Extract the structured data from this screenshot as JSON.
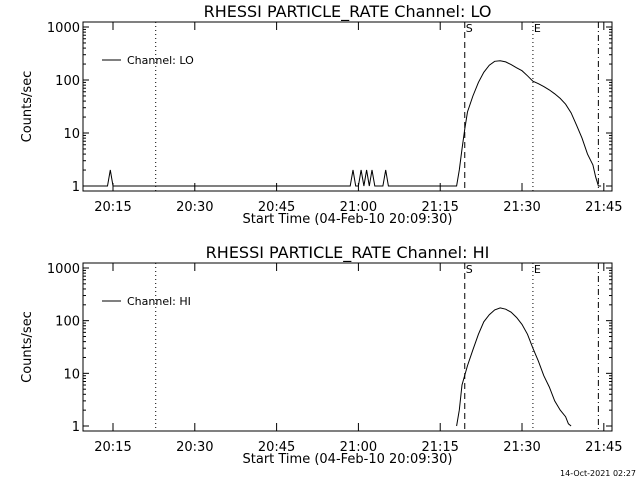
{
  "chart_data": [
    {
      "type": "line",
      "title": "RHESSI PARTICLE_RATE Channel: LO",
      "xlabel": "Start Time (04-Feb-10 20:09:30)",
      "ylabel": "Counts/sec",
      "yscale": "log",
      "ylim": [
        1,
        1000
      ],
      "xlim_minutes": [
        0,
        97
      ],
      "x_tick_labels": [
        "20:15",
        "20:30",
        "20:45",
        "21:00",
        "21:15",
        "21:30",
        "21:45"
      ],
      "y_tick_labels": [
        "1",
        "10",
        "100",
        "1000"
      ],
      "legend": {
        "label": "Channel: LO",
        "position": "upper-left"
      },
      "vertical_markers": [
        {
          "label": "",
          "time": "20:22:50",
          "style": "dotted"
        },
        {
          "label": "S",
          "time": "21:19:30",
          "style": "dashed"
        },
        {
          "label": "E",
          "time": "21:32:00",
          "style": "dotted"
        },
        {
          "label": "",
          "time": "21:44:00",
          "style": "dashdot"
        }
      ],
      "series": [
        {
          "name": "Channel: LO",
          "x": [
            "20:09:30",
            "20:13:30",
            "20:14:00",
            "20:14:30",
            "20:15:00",
            "20:15:30",
            "20:58:00",
            "20:58:30",
            "20:59:00",
            "20:59:30",
            "21:00:00",
            "21:00:30",
            "21:01:00",
            "21:01:30",
            "21:02:00",
            "21:02:30",
            "21:03:00",
            "21:03:30",
            "21:04:00",
            "21:04:30",
            "21:05:00",
            "21:05:30",
            "21:06:00",
            "21:18:00",
            "21:18:30",
            "21:19:00",
            "21:19:30",
            "21:20:00",
            "21:21:00",
            "21:22:00",
            "21:23:00",
            "21:24:00",
            "21:25:00",
            "21:26:00",
            "21:27:00",
            "21:28:00",
            "21:29:00",
            "21:30:00",
            "21:31:00",
            "21:32:00",
            "21:33:00",
            "21:34:00",
            "21:35:00",
            "21:36:00",
            "21:37:00",
            "21:38:00",
            "21:39:00",
            "21:40:00",
            "21:41:00",
            "21:42:00",
            "21:43:00",
            "21:43:30",
            "21:44:00",
            "21:44:30"
          ],
          "y": [
            1,
            1,
            1,
            2,
            1,
            1,
            1,
            1,
            2,
            1,
            1,
            2,
            1,
            2,
            1,
            2,
            1,
            1,
            1,
            1,
            2,
            1,
            1,
            1,
            2,
            5,
            12,
            25,
            50,
            90,
            140,
            190,
            225,
            230,
            220,
            195,
            170,
            150,
            120,
            95,
            85,
            75,
            65,
            55,
            45,
            35,
            24,
            14,
            8,
            4,
            2.5,
            1.5,
            1,
            1
          ]
        }
      ]
    },
    {
      "type": "line",
      "title": "RHESSI PARTICLE_RATE Channel: HI",
      "xlabel": "Start Time (04-Feb-10 20:09:30)",
      "ylabel": "Counts/sec",
      "yscale": "log",
      "ylim": [
        1,
        1000
      ],
      "xlim_minutes": [
        0,
        97
      ],
      "x_tick_labels": [
        "20:15",
        "20:30",
        "20:45",
        "21:00",
        "21:15",
        "21:30",
        "21:45"
      ],
      "y_tick_labels": [
        "1",
        "10",
        "100",
        "1000"
      ],
      "legend": {
        "label": "Channel: HI",
        "position": "upper-left"
      },
      "vertical_markers": [
        {
          "label": "",
          "time": "20:22:50",
          "style": "dotted"
        },
        {
          "label": "S",
          "time": "21:19:30",
          "style": "dashed"
        },
        {
          "label": "E",
          "time": "21:32:00",
          "style": "dotted"
        },
        {
          "label": "",
          "time": "21:44:00",
          "style": "dashdot"
        }
      ],
      "series": [
        {
          "name": "Channel: HI",
          "x": [
            "21:18:00",
            "21:18:30",
            "21:19:00",
            "21:20:00",
            "21:21:00",
            "21:22:00",
            "21:23:00",
            "21:24:00",
            "21:25:00",
            "21:26:00",
            "21:27:00",
            "21:28:00",
            "21:29:00",
            "21:30:00",
            "21:31:00",
            "21:32:00",
            "21:33:00",
            "21:34:00",
            "21:35:00",
            "21:36:00",
            "21:37:00",
            "21:38:00",
            "21:38:30",
            "21:39:00"
          ],
          "y": [
            1,
            2,
            6,
            14,
            28,
            55,
            95,
            130,
            160,
            175,
            165,
            145,
            115,
            85,
            55,
            30,
            17,
            9,
            5.5,
            3,
            2,
            1.5,
            1.1,
            1
          ]
        }
      ]
    }
  ],
  "timestamp": "14-Oct-2021 02:27",
  "colors": {
    "line": "#000000",
    "background": "#ffffff"
  }
}
